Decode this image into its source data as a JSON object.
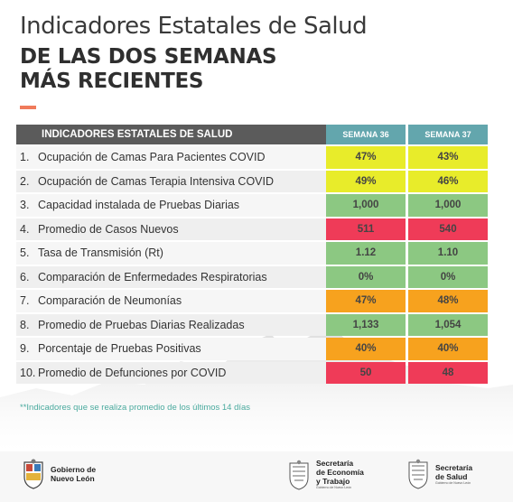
{
  "title": {
    "line1": "Indicadores Estatales de Salud",
    "line2": "DE LAS DOS SEMANAS",
    "line3": "MÁS RECIENTES"
  },
  "table": {
    "header": "INDICADORES ESTATALES DE SALUD",
    "week_a": "SEMANA 36",
    "week_b": "SEMANA 37",
    "rows": [
      {
        "num": "1.",
        "label": "Ocupación de Camas Para Pacientes COVID",
        "a": "47%",
        "b": "43%",
        "color": "#e8ec2a"
      },
      {
        "num": "2.",
        "label": "Ocupación de Camas Terapia Intensiva COVID",
        "a": "49%",
        "b": "46%",
        "color": "#e8ec2a"
      },
      {
        "num": "3.",
        "label": "Capacidad instalada de Pruebas Diarias",
        "a": "1,000",
        "b": "1,000",
        "color": "#8cc882"
      },
      {
        "num": "4.",
        "label": "Promedio de Casos Nuevos",
        "a": "511",
        "b": "540",
        "color": "#ef3b58"
      },
      {
        "num": "5.",
        "label": "Tasa de Transmisión (Rt)",
        "a": "1.12",
        "b": "1.10",
        "color": "#8cc882"
      },
      {
        "num": "6.",
        "label": "Comparación de Enfermedades Respiratorias",
        "a": "0%",
        "b": "0%",
        "color": "#8cc882"
      },
      {
        "num": "7.",
        "label": "Comparación de Neumonías",
        "a": "47%",
        "b": "48%",
        "color": "#f7a21e"
      },
      {
        "num": "8.",
        "label": "Promedio de Pruebas Diarias Realizadas",
        "a": "1,133",
        "b": "1,054",
        "color": "#8cc882"
      },
      {
        "num": "9.",
        "label": "Porcentaje de Pruebas Positivas",
        "a": "40%",
        "b": "40%",
        "color": "#f7a21e"
      },
      {
        "num": "10.",
        "label": "Promedio de Defunciones por COVID",
        "a": "50",
        "b": "48",
        "color": "#ef3b58"
      }
    ]
  },
  "note": "**Indicadores que se realiza promedio de los últimos 14 días",
  "footer": {
    "logo1": {
      "l1": "Gobierno de",
      "l2": "Nuevo León"
    },
    "logo2": {
      "l1": "Secretaría",
      "l2": "de Economía",
      "l3": "y Trabajo",
      "sub": "Gobierno de Nuevo León"
    },
    "logo3": {
      "l1": "Secretaría",
      "l2": "de Salud",
      "sub": "Gobierno de Nuevo León"
    }
  }
}
